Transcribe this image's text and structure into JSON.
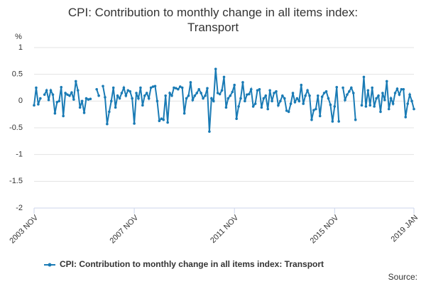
{
  "chart_data": {
    "type": "line",
    "title": "CPI: Contribution to monthly change in all items index: Transport",
    "y_unit": "%",
    "source": "Source:",
    "categories": [
      "2003 NOV",
      null,
      null,
      null,
      null,
      null,
      null,
      null,
      null,
      null,
      null,
      null,
      null,
      null,
      null,
      null,
      null,
      null,
      null,
      null,
      null,
      null,
      null,
      null,
      null,
      null,
      null,
      null,
      null,
      null,
      null,
      null,
      null,
      null,
      null,
      null,
      null,
      null,
      null,
      null,
      null,
      null,
      null,
      null,
      null,
      null,
      null,
      null,
      "2007 NOV",
      null,
      null,
      null,
      null,
      null,
      null,
      null,
      null,
      null,
      null,
      null,
      null,
      null,
      null,
      null,
      null,
      null,
      null,
      null,
      null,
      null,
      null,
      null,
      null,
      null,
      null,
      null,
      null,
      null,
      null,
      null,
      null,
      null,
      null,
      null,
      null,
      null,
      null,
      null,
      null,
      null,
      null,
      null,
      null,
      null,
      null,
      null,
      "2011 NOV",
      null,
      null,
      null,
      null,
      null,
      null,
      null,
      null,
      null,
      null,
      null,
      null,
      null,
      null,
      null,
      null,
      null,
      null,
      null,
      null,
      null,
      null,
      null,
      null,
      null,
      null,
      null,
      null,
      null,
      null,
      null,
      null,
      null,
      null,
      null,
      null,
      null,
      null,
      null,
      null,
      null,
      null,
      null,
      null,
      null,
      null,
      null,
      "2015 NOV",
      null,
      null,
      null,
      null,
      null,
      null,
      null,
      null,
      null,
      null,
      null,
      null,
      null,
      null,
      null,
      null,
      null,
      null,
      null,
      null,
      null,
      null,
      null,
      null,
      null,
      null,
      null,
      null,
      null,
      null,
      null,
      null,
      null,
      null,
      null,
      null,
      null,
      "2019 JAN"
    ],
    "series": [
      {
        "name": "CPI: Contribution to monthly change in all items index: Transport",
        "color": "#1a7bb5",
        "values": [
          -0.08,
          0.25,
          -0.06,
          0.05,
          null,
          0.12,
          0.2,
          0.02,
          0.2,
          0.12,
          -0.23,
          -0.02,
          0.0,
          0.26,
          -0.28,
          0.15,
          0.12,
          0.1,
          0.16,
          0.03,
          0.37,
          0.2,
          -0.12,
          0.0,
          -0.22,
          0.05,
          0.03,
          0.04,
          null,
          null,
          0.22,
          0.1,
          null,
          0.28,
          0.07,
          -0.43,
          -0.2,
          0.0,
          0.25,
          -0.12,
          0.1,
          0.05,
          0.15,
          0.25,
          0.1,
          0.2,
          0.18,
          0.05,
          -0.42,
          0.15,
          0.05,
          0.25,
          -0.08,
          0.1,
          0.15,
          0.05,
          0.25,
          0.27,
          0.28,
          0.0,
          -0.37,
          -0.33,
          -0.35,
          0.1,
          -0.4,
          0.15,
          0.1,
          0.25,
          0.24,
          0.22,
          0.27,
          0.25,
          -0.23,
          0.05,
          0.1,
          0.35,
          0.02,
          0.1,
          0.15,
          0.22,
          0.15,
          0.05,
          0.1,
          0.24,
          -0.57,
          0.05,
          0.0,
          0.6,
          0.15,
          0.13,
          0.2,
          0.45,
          -0.12,
          0.05,
          0.1,
          0.17,
          0.3,
          -0.33,
          -0.1,
          0.05,
          0.35,
          0.0,
          0.12,
          0.13,
          0.22,
          -0.1,
          -0.05,
          0.2,
          0.22,
          -0.12,
          0.05,
          0.1,
          -0.15,
          0.2,
          0.0,
          0.15,
          0.18,
          -0.08,
          0.0,
          0.1,
          0.05,
          -0.18,
          -0.2,
          -0.05,
          0.15,
          -0.02,
          0.05,
          0.0,
          0.3,
          -0.05,
          0.1,
          0.2,
          0.1,
          -0.35,
          -0.17,
          -0.15,
          0.1,
          -0.28,
          0.08,
          0.15,
          0.18,
          0.05,
          -0.07,
          -0.38,
          -0.1,
          0.26,
          -0.38,
          null,
          0.25,
          0.02,
          0.12,
          0.18,
          0.25,
          0.15,
          -0.35,
          null,
          null,
          -0.08,
          0.45,
          -0.1,
          0.2,
          -0.08,
          0.25,
          -0.1,
          0.05,
          0.1,
          -0.2,
          0.15,
          0.02,
          0.37,
          -0.15,
          0.05,
          -0.05,
          0.15,
          0.23,
          0.12,
          0.22,
          0.22,
          -0.3,
          -0.05,
          0.12,
          0.0,
          -0.15
        ]
      }
    ],
    "ylim": [
      -2,
      1
    ],
    "yticks": [
      1,
      0.5,
      0,
      -0.5,
      -1,
      -1.5,
      -2
    ],
    "grid": true
  }
}
